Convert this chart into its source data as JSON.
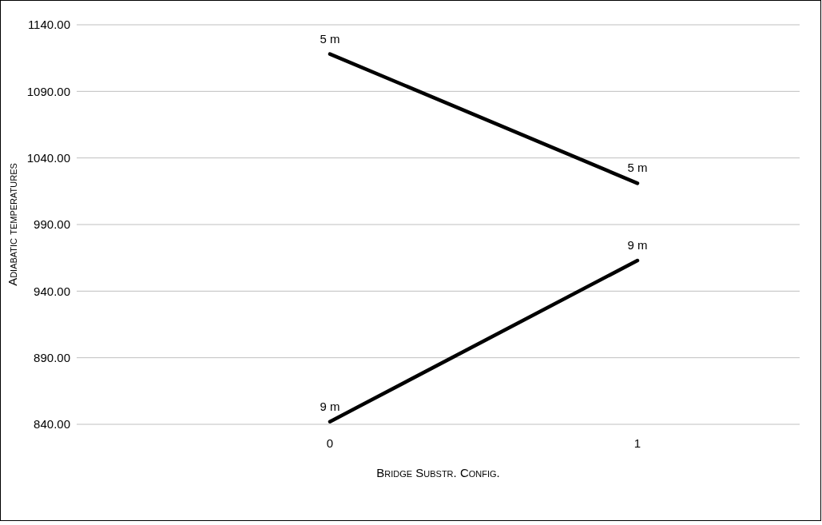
{
  "chart_data": {
    "type": "line",
    "xlabel": "Bridge Substr. Config.",
    "ylabel": "Adiabatic temperatures",
    "categories": [
      "0",
      "1"
    ],
    "series": [
      {
        "name": "5 m",
        "color": "#000000",
        "values": [
          1118,
          1021
        ]
      },
      {
        "name": "9 m",
        "color": "#000000",
        "values": [
          842,
          963
        ]
      }
    ],
    "ylim": [
      840,
      1140
    ],
    "yticks": [
      {
        "value": 840,
        "label": "840.00"
      },
      {
        "value": 890,
        "label": "890.00"
      },
      {
        "value": 940,
        "label": "940.00"
      },
      {
        "value": 990,
        "label": "990.00"
      },
      {
        "value": 1040,
        "label": "1040.00"
      },
      {
        "value": 1090,
        "label": "1090.00"
      },
      {
        "value": 1140,
        "label": "1140.00"
      }
    ],
    "grid": "y",
    "legend": false,
    "marker": "none",
    "line_style": "solid"
  }
}
